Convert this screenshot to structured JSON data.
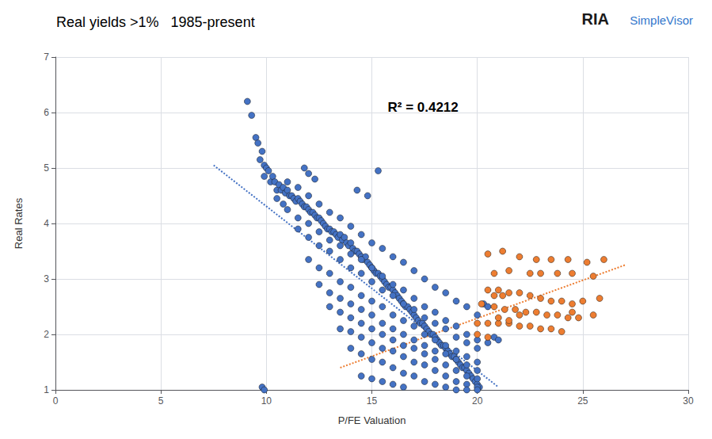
{
  "chart_data": {
    "type": "scatter",
    "title": "Real yields >1%   1985-present",
    "x_label": "P/FE Valuation",
    "y_label": "Real Rates",
    "annotations": [
      "R² = 0.4212",
      "RIA",
      "SimpleVisor"
    ],
    "xlim": [
      0,
      30
    ],
    "ylim": [
      1,
      7
    ],
    "xticks": [
      0,
      5,
      10,
      15,
      20,
      25,
      30
    ],
    "yticks": [
      1,
      2,
      3,
      4,
      5,
      6,
      7
    ],
    "grid": true,
    "series": [
      {
        "type": "scatter",
        "color": "#4472C4",
        "values": [
          [
            9.1,
            6.2
          ],
          [
            9.3,
            5.95
          ],
          [
            9.5,
            5.55
          ],
          [
            9.6,
            5.45
          ],
          [
            9.7,
            5.15
          ],
          [
            9.8,
            5.3
          ],
          [
            9.9,
            5.05
          ],
          [
            10.0,
            5.0
          ],
          [
            9.9,
            4.85
          ],
          [
            10.1,
            4.95
          ],
          [
            10.2,
            4.75
          ],
          [
            10.3,
            4.85
          ],
          [
            10.4,
            4.75
          ],
          [
            10.5,
            4.6
          ],
          [
            10.6,
            4.7
          ],
          [
            10.7,
            4.6
          ],
          [
            10.8,
            4.65
          ],
          [
            10.9,
            4.55
          ],
          [
            11.0,
            4.6
          ],
          [
            11.1,
            4.5
          ],
          [
            11.2,
            4.5
          ],
          [
            11.3,
            4.45
          ],
          [
            11.4,
            4.4
          ],
          [
            11.5,
            4.45
          ],
          [
            11.6,
            4.4
          ],
          [
            11.7,
            4.35
          ],
          [
            11.8,
            4.3
          ],
          [
            11.9,
            4.3
          ],
          [
            12.0,
            4.25
          ],
          [
            12.1,
            4.2
          ],
          [
            12.2,
            4.2
          ],
          [
            12.3,
            4.15
          ],
          [
            12.4,
            4.1
          ],
          [
            12.5,
            4.1
          ],
          [
            12.6,
            4.05
          ],
          [
            12.7,
            4.0
          ],
          [
            12.8,
            3.95
          ],
          [
            12.9,
            3.9
          ],
          [
            13.0,
            3.9
          ],
          [
            13.1,
            3.85
          ],
          [
            13.2,
            3.85
          ],
          [
            13.3,
            3.8
          ],
          [
            13.4,
            3.75
          ],
          [
            13.5,
            3.8
          ],
          [
            13.6,
            3.7
          ],
          [
            13.7,
            3.75
          ],
          [
            13.8,
            3.65
          ],
          [
            13.9,
            3.6
          ],
          [
            14.0,
            3.65
          ],
          [
            14.1,
            3.55
          ],
          [
            14.2,
            3.5
          ],
          [
            14.3,
            3.5
          ],
          [
            14.4,
            3.45
          ],
          [
            14.5,
            3.4
          ],
          [
            14.6,
            3.35
          ],
          [
            14.7,
            3.4
          ],
          [
            14.8,
            3.3
          ],
          [
            14.9,
            3.25
          ],
          [
            15.0,
            3.2
          ],
          [
            15.1,
            3.15
          ],
          [
            15.2,
            3.1
          ],
          [
            15.3,
            3.1
          ],
          [
            15.4,
            3.05
          ],
          [
            15.5,
            3.0
          ],
          [
            15.6,
            2.95
          ],
          [
            15.7,
            2.9
          ],
          [
            15.8,
            2.85
          ],
          [
            15.9,
            2.85
          ],
          [
            16.0,
            2.8
          ],
          [
            16.1,
            2.75
          ],
          [
            16.2,
            2.7
          ],
          [
            16.3,
            2.65
          ],
          [
            16.4,
            2.6
          ],
          [
            16.5,
            2.55
          ],
          [
            16.6,
            2.5
          ],
          [
            16.7,
            2.5
          ],
          [
            16.8,
            2.45
          ],
          [
            16.9,
            2.4
          ],
          [
            17.0,
            2.35
          ],
          [
            17.1,
            2.3
          ],
          [
            17.2,
            2.25
          ],
          [
            17.3,
            2.2
          ],
          [
            17.4,
            2.2
          ],
          [
            17.5,
            2.15
          ],
          [
            17.6,
            2.1
          ],
          [
            17.7,
            2.05
          ],
          [
            17.8,
            2.0
          ],
          [
            17.9,
            2.0
          ],
          [
            18.0,
            1.95
          ],
          [
            18.1,
            1.9
          ],
          [
            18.2,
            1.85
          ],
          [
            18.3,
            1.8
          ],
          [
            18.4,
            1.8
          ],
          [
            18.5,
            1.75
          ],
          [
            18.6,
            1.7
          ],
          [
            18.7,
            1.65
          ],
          [
            18.8,
            1.6
          ],
          [
            18.9,
            1.6
          ],
          [
            19.0,
            1.55
          ],
          [
            19.1,
            1.5
          ],
          [
            19.2,
            1.45
          ],
          [
            19.3,
            1.4
          ],
          [
            19.4,
            1.4
          ],
          [
            19.5,
            1.35
          ],
          [
            19.6,
            1.3
          ],
          [
            19.7,
            1.25
          ],
          [
            19.8,
            1.2
          ],
          [
            19.9,
            1.15
          ],
          [
            20.0,
            1.1
          ],
          [
            20.1,
            1.05
          ],
          [
            10.5,
            4.45
          ],
          [
            10.8,
            4.35
          ],
          [
            11.0,
            4.25
          ],
          [
            11.5,
            4.1
          ],
          [
            12.0,
            4.0
          ],
          [
            12.5,
            3.85
          ],
          [
            13.0,
            3.7
          ],
          [
            13.5,
            3.6
          ],
          [
            14.0,
            3.45
          ],
          [
            14.5,
            3.35
          ],
          [
            15.0,
            3.2
          ],
          [
            15.5,
            3.05
          ],
          [
            16.0,
            2.9
          ],
          [
            16.5,
            2.8
          ],
          [
            17.0,
            2.65
          ],
          [
            17.5,
            2.5
          ],
          [
            18.0,
            2.4
          ],
          [
            18.5,
            2.25
          ],
          [
            19.0,
            2.15
          ],
          [
            19.5,
            2.0
          ],
          [
            20.0,
            1.9
          ],
          [
            11.0,
            4.75
          ],
          [
            11.5,
            4.65
          ],
          [
            12.0,
            4.5
          ],
          [
            12.5,
            4.35
          ],
          [
            13.0,
            4.2
          ],
          [
            13.5,
            4.1
          ],
          [
            14.0,
            3.95
          ],
          [
            14.5,
            3.8
          ],
          [
            15.0,
            3.65
          ],
          [
            15.5,
            3.55
          ],
          [
            16.0,
            3.4
          ],
          [
            16.5,
            3.3
          ],
          [
            17.0,
            3.15
          ],
          [
            17.5,
            3.0
          ],
          [
            18.0,
            2.85
          ],
          [
            18.5,
            2.75
          ],
          [
            19.0,
            2.6
          ],
          [
            19.5,
            2.5
          ],
          [
            20.0,
            2.35
          ],
          [
            11.5,
            3.9
          ],
          [
            12.0,
            3.75
          ],
          [
            12.5,
            3.6
          ],
          [
            13.0,
            3.5
          ],
          [
            13.5,
            3.35
          ],
          [
            14.0,
            3.2
          ],
          [
            14.5,
            3.1
          ],
          [
            15.0,
            2.95
          ],
          [
            15.5,
            2.8
          ],
          [
            16.0,
            2.7
          ],
          [
            16.5,
            2.55
          ],
          [
            17.0,
            2.45
          ],
          [
            17.5,
            2.3
          ],
          [
            18.0,
            2.2
          ],
          [
            18.5,
            2.1
          ],
          [
            19.0,
            1.95
          ],
          [
            19.5,
            1.85
          ],
          [
            20.0,
            1.75
          ],
          [
            12.0,
            3.35
          ],
          [
            12.5,
            3.2
          ],
          [
            13.0,
            3.1
          ],
          [
            13.5,
            2.95
          ],
          [
            14.0,
            2.85
          ],
          [
            14.5,
            2.7
          ],
          [
            15.0,
            2.6
          ],
          [
            15.5,
            2.5
          ],
          [
            16.0,
            2.35
          ],
          [
            16.5,
            2.25
          ],
          [
            17.0,
            2.15
          ],
          [
            17.5,
            2.0
          ],
          [
            18.0,
            1.9
          ],
          [
            18.5,
            1.8
          ],
          [
            19.0,
            1.7
          ],
          [
            19.5,
            1.6
          ],
          [
            20.0,
            1.5
          ],
          [
            12.5,
            2.9
          ],
          [
            13.0,
            2.75
          ],
          [
            13.5,
            2.65
          ],
          [
            14.0,
            2.55
          ],
          [
            14.5,
            2.45
          ],
          [
            15.0,
            2.35
          ],
          [
            15.5,
            2.2
          ],
          [
            16.0,
            2.1
          ],
          [
            16.5,
            2.0
          ],
          [
            17.0,
            1.9
          ],
          [
            17.5,
            1.8
          ],
          [
            18.0,
            1.7
          ],
          [
            18.5,
            1.65
          ],
          [
            19.0,
            1.55
          ],
          [
            19.5,
            1.45
          ],
          [
            20.0,
            1.35
          ],
          [
            13.0,
            2.5
          ],
          [
            13.5,
            2.4
          ],
          [
            14.0,
            2.3
          ],
          [
            14.5,
            2.2
          ],
          [
            15.0,
            2.1
          ],
          [
            15.5,
            2.0
          ],
          [
            16.0,
            1.9
          ],
          [
            16.5,
            1.8
          ],
          [
            17.0,
            1.75
          ],
          [
            17.5,
            1.65
          ],
          [
            18.0,
            1.55
          ],
          [
            18.5,
            1.45
          ],
          [
            19.0,
            1.35
          ],
          [
            19.5,
            1.25
          ],
          [
            20.0,
            1.2
          ],
          [
            13.5,
            2.1
          ],
          [
            14.0,
            2.05
          ],
          [
            14.5,
            1.95
          ],
          [
            15.0,
            1.85
          ],
          [
            15.5,
            1.75
          ],
          [
            16.0,
            1.7
          ],
          [
            16.5,
            1.6
          ],
          [
            17.0,
            1.5
          ],
          [
            17.5,
            1.45
          ],
          [
            18.0,
            1.35
          ],
          [
            18.5,
            1.25
          ],
          [
            19.0,
            1.15
          ],
          [
            19.5,
            1.1
          ],
          [
            20.0,
            1.05
          ],
          [
            14.0,
            1.75
          ],
          [
            14.5,
            1.65
          ],
          [
            15.0,
            1.55
          ],
          [
            15.5,
            1.5
          ],
          [
            16.0,
            1.4
          ],
          [
            16.5,
            1.3
          ],
          [
            17.0,
            1.25
          ],
          [
            17.5,
            1.15
          ],
          [
            18.0,
            1.1
          ],
          [
            18.5,
            1.05
          ],
          [
            19.0,
            1.0
          ],
          [
            19.5,
            1.0
          ],
          [
            20.0,
            1.0
          ],
          [
            9.8,
            1.05
          ],
          [
            9.9,
            1.0
          ],
          [
            14.5,
            1.25
          ],
          [
            15.0,
            1.2
          ],
          [
            15.5,
            1.15
          ],
          [
            16.0,
            1.1
          ],
          [
            16.5,
            1.05
          ],
          [
            14.3,
            4.6
          ],
          [
            14.8,
            4.5
          ],
          [
            15.3,
            4.95
          ],
          [
            20.5,
            1.85
          ],
          [
            20.8,
            1.95
          ],
          [
            21.0,
            1.9
          ],
          [
            20.3,
            2.55
          ],
          [
            20.5,
            2.5
          ],
          [
            11.8,
            5.0
          ],
          [
            12.0,
            4.9
          ],
          [
            12.3,
            4.8
          ]
        ]
      },
      {
        "type": "scatter",
        "color": "#ED7D31",
        "values": [
          [
            20.5,
            3.45
          ],
          [
            21.2,
            3.5
          ],
          [
            22.0,
            3.4
          ],
          [
            22.8,
            3.35
          ],
          [
            23.5,
            3.35
          ],
          [
            24.3,
            3.35
          ],
          [
            25.2,
            3.3
          ],
          [
            26.0,
            3.35
          ],
          [
            20.8,
            3.1
          ],
          [
            21.5,
            3.15
          ],
          [
            22.5,
            3.1
          ],
          [
            23.0,
            3.1
          ],
          [
            23.8,
            3.1
          ],
          [
            24.5,
            3.1
          ],
          [
            25.5,
            3.05
          ],
          [
            20.5,
            2.8
          ],
          [
            21.0,
            2.8
          ],
          [
            21.5,
            2.75
          ],
          [
            22.0,
            2.75
          ],
          [
            22.5,
            2.7
          ],
          [
            23.0,
            2.65
          ],
          [
            23.5,
            2.6
          ],
          [
            24.0,
            2.6
          ],
          [
            24.5,
            2.55
          ],
          [
            25.0,
            2.6
          ],
          [
            25.8,
            2.65
          ],
          [
            20.2,
            2.55
          ],
          [
            20.8,
            2.5
          ],
          [
            21.3,
            2.45
          ],
          [
            21.8,
            2.45
          ],
          [
            22.3,
            2.4
          ],
          [
            22.8,
            2.4
          ],
          [
            23.3,
            2.35
          ],
          [
            23.8,
            2.35
          ],
          [
            24.3,
            2.3
          ],
          [
            24.8,
            2.3
          ],
          [
            20.0,
            2.2
          ],
          [
            20.5,
            2.2
          ],
          [
            21.0,
            2.2
          ],
          [
            21.5,
            2.2
          ],
          [
            22.0,
            2.15
          ],
          [
            22.5,
            2.15
          ],
          [
            23.0,
            2.1
          ],
          [
            23.5,
            2.1
          ],
          [
            24.0,
            2.05
          ],
          [
            20.0,
            2.0
          ],
          [
            20.5,
            1.95
          ],
          [
            21.0,
            2.3
          ],
          [
            21.5,
            2.25
          ],
          [
            22.0,
            2.35
          ],
          [
            24.5,
            2.4
          ],
          [
            25.5,
            2.35
          ],
          [
            20.8,
            2.7
          ],
          [
            21.2,
            2.7
          ]
        ]
      },
      {
        "type": "line",
        "line_style": "dotted",
        "color": "#4472C4",
        "values": [
          [
            7.5,
            5.05
          ],
          [
            21.0,
            1.05
          ]
        ]
      },
      {
        "type": "line",
        "line_style": "dotted",
        "color": "#ED7D31",
        "values": [
          [
            13.5,
            1.4
          ],
          [
            27.0,
            3.25
          ]
        ]
      }
    ]
  }
}
